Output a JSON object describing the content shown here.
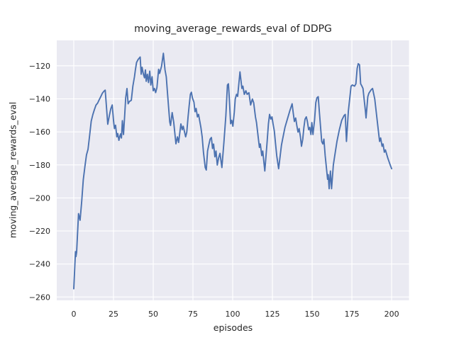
{
  "chart_data": {
    "type": "line",
    "title": "moving_average_rewards_eval of DDPG",
    "xlabel": "episodes",
    "ylabel": "moving_average_rewards_eval",
    "x_ticks": [
      0,
      25,
      50,
      75,
      100,
      125,
      150,
      175,
      200
    ],
    "y_ticks": [
      -120,
      -140,
      -160,
      -180,
      -200,
      -220,
      -240,
      -260
    ],
    "xlim": [
      -10.7,
      210.9
    ],
    "ylim": [
      -262.0,
      -104.6
    ],
    "grid": true,
    "legend": "none",
    "style": "seaborn-darkgrid",
    "colors": {
      "line": "#4c72b0",
      "axes_background": "#eaeaf2",
      "grid": "#ffffff",
      "figure_background": "#ffffff",
      "text": "#262626"
    },
    "series": [
      {
        "name": "moving_average_rewards_eval",
        "points": [
          [
            0,
            -255.0
          ],
          [
            1.1,
            -232.5
          ],
          [
            1.4,
            -235.5
          ],
          [
            1.8,
            -233.0
          ],
          [
            3,
            -209.5
          ],
          [
            4,
            -213.5
          ],
          [
            5,
            -202
          ],
          [
            6,
            -189
          ],
          [
            7,
            -181
          ],
          [
            8,
            -174
          ],
          [
            9,
            -170.5
          ],
          [
            10,
            -162
          ],
          [
            11,
            -153.5
          ],
          [
            12,
            -149.5
          ],
          [
            13,
            -146.5
          ],
          [
            14,
            -143.8
          ],
          [
            15,
            -142.6
          ],
          [
            16,
            -140.6
          ],
          [
            17,
            -138.6
          ],
          [
            18,
            -136.6
          ],
          [
            19,
            -135.4
          ],
          [
            19.8,
            -134.7
          ],
          [
            20.6,
            -145
          ],
          [
            21.4,
            -155.4
          ],
          [
            22.4,
            -150
          ],
          [
            23.3,
            -146
          ],
          [
            24.2,
            -143.7
          ],
          [
            25,
            -153
          ],
          [
            25.6,
            -158
          ],
          [
            26.3,
            -156
          ],
          [
            27.1,
            -163
          ],
          [
            27.7,
            -161
          ],
          [
            28.4,
            -165.1
          ],
          [
            29.1,
            -162.3
          ],
          [
            29.5,
            -161.2
          ],
          [
            30,
            -163.7
          ],
          [
            30.6,
            -153.2
          ],
          [
            31.3,
            -161.6
          ],
          [
            32,
            -150.5
          ],
          [
            32.7,
            -139.4
          ],
          [
            33.5,
            -133.7
          ],
          [
            34.2,
            -143
          ],
          [
            35,
            -141.6
          ],
          [
            36.2,
            -140.9
          ],
          [
            37.2,
            -132.3
          ],
          [
            38.2,
            -126.5
          ],
          [
            38.8,
            -122.3
          ],
          [
            39.5,
            -118
          ],
          [
            40.5,
            -116.2
          ],
          [
            41.8,
            -114.7
          ],
          [
            42.4,
            -125.1
          ],
          [
            43,
            -120.9
          ],
          [
            43.8,
            -125
          ],
          [
            44.5,
            -127.3
          ],
          [
            45.1,
            -122.5
          ],
          [
            45.6,
            -129.4
          ],
          [
            46.3,
            -125.1
          ],
          [
            47,
            -130.1
          ],
          [
            47.8,
            -123.2
          ],
          [
            48.5,
            -131.6
          ],
          [
            49.3,
            -126.6
          ],
          [
            50,
            -135.1
          ],
          [
            50.8,
            -133.7
          ],
          [
            51.5,
            -136.2
          ],
          [
            52.3,
            -133.3
          ],
          [
            53.4,
            -122.1
          ],
          [
            54,
            -124.6
          ],
          [
            55.2,
            -120.3
          ],
          [
            56.4,
            -112.4
          ],
          [
            57.4,
            -122.4
          ],
          [
            58.2,
            -126.7
          ],
          [
            58.9,
            -135.3
          ],
          [
            59.7,
            -145.3
          ],
          [
            60.4,
            -154
          ],
          [
            60.9,
            -156.1
          ],
          [
            61.9,
            -148.3
          ],
          [
            62.9,
            -154.2
          ],
          [
            64.3,
            -167.2
          ],
          [
            65.2,
            -163
          ],
          [
            66,
            -166.4
          ],
          [
            67.4,
            -155.2
          ],
          [
            68.2,
            -158.7
          ],
          [
            68.9,
            -156.6
          ],
          [
            70.4,
            -163
          ],
          [
            71.1,
            -160.2
          ],
          [
            71.9,
            -151
          ],
          [
            72.6,
            -144.4
          ],
          [
            73.4,
            -137.2
          ],
          [
            74,
            -136
          ],
          [
            74.7,
            -139.5
          ],
          [
            75.6,
            -142
          ],
          [
            76.3,
            -147.8
          ],
          [
            77,
            -145.8
          ],
          [
            77.8,
            -150.9
          ],
          [
            78.5,
            -149.4
          ],
          [
            80,
            -157.3
          ],
          [
            80.8,
            -163
          ],
          [
            81.6,
            -172.3
          ],
          [
            82.7,
            -181.6
          ],
          [
            83.4,
            -183.1
          ],
          [
            84.2,
            -171.6
          ],
          [
            85,
            -167.8
          ],
          [
            85.8,
            -164.4
          ],
          [
            86.6,
            -163.4
          ],
          [
            87.3,
            -170.1
          ],
          [
            88,
            -167.4
          ],
          [
            88.8,
            -175.1
          ],
          [
            89.5,
            -171.6
          ],
          [
            90.3,
            -180.1
          ],
          [
            91.1,
            -175.9
          ],
          [
            92,
            -173
          ],
          [
            93.2,
            -181.6
          ],
          [
            94.5,
            -166
          ],
          [
            95.7,
            -150.1
          ],
          [
            96.7,
            -131.6
          ],
          [
            97.3,
            -130.9
          ],
          [
            97.9,
            -140.1
          ],
          [
            98.7,
            -155.1
          ],
          [
            99.4,
            -153
          ],
          [
            100.1,
            -156.6
          ],
          [
            101,
            -148
          ],
          [
            101.6,
            -140.1
          ],
          [
            102.4,
            -137.3
          ],
          [
            103.1,
            -138.5
          ],
          [
            104.6,
            -123.7
          ],
          [
            105.8,
            -133.7
          ],
          [
            106.4,
            -132.3
          ],
          [
            107.3,
            -137.3
          ],
          [
            108.3,
            -135.1
          ],
          [
            109.1,
            -137.3
          ],
          [
            110.2,
            -136.3
          ],
          [
            111.3,
            -143.7
          ],
          [
            112.4,
            -140.1
          ],
          [
            113.2,
            -142.3
          ],
          [
            114.3,
            -150.9
          ],
          [
            115,
            -154.4
          ],
          [
            116.2,
            -164.4
          ],
          [
            116.8,
            -169.4
          ],
          [
            117.4,
            -167.3
          ],
          [
            118.3,
            -174.4
          ],
          [
            118.9,
            -171.6
          ],
          [
            120.2,
            -183.7
          ],
          [
            121.7,
            -165.8
          ],
          [
            122.5,
            -155.1
          ],
          [
            123.2,
            -149.4
          ],
          [
            124,
            -152.3
          ],
          [
            124.7,
            -150.9
          ],
          [
            125.4,
            -155.1
          ],
          [
            126.2,
            -159.4
          ],
          [
            126.9,
            -166.6
          ],
          [
            127.7,
            -174.4
          ],
          [
            128.9,
            -182.3
          ],
          [
            129.9,
            -174.4
          ],
          [
            130.7,
            -168
          ],
          [
            131.4,
            -164.4
          ],
          [
            132.9,
            -157.3
          ],
          [
            134.4,
            -152.3
          ],
          [
            135.9,
            -147.3
          ],
          [
            137.4,
            -143
          ],
          [
            138.1,
            -148.7
          ],
          [
            138.8,
            -153.7
          ],
          [
            139.6,
            -151.6
          ],
          [
            140.3,
            -155.8
          ],
          [
            141.1,
            -160.1
          ],
          [
            141.8,
            -158
          ],
          [
            142.6,
            -163
          ],
          [
            143.3,
            -168.7
          ],
          [
            144.1,
            -164.4
          ],
          [
            144.8,
            -157.3
          ],
          [
            145.5,
            -152.3
          ],
          [
            146.3,
            -150.9
          ],
          [
            147,
            -153.7
          ],
          [
            147.8,
            -158.7
          ],
          [
            148.5,
            -157.3
          ],
          [
            149.2,
            -161.6
          ],
          [
            149.8,
            -154.4
          ],
          [
            150.5,
            -161.6
          ],
          [
            151.5,
            -153
          ],
          [
            152.3,
            -142.3
          ],
          [
            153,
            -139.4
          ],
          [
            153.8,
            -138.7
          ],
          [
            154.5,
            -147.3
          ],
          [
            156,
            -165.8
          ],
          [
            156.7,
            -167.3
          ],
          [
            157.4,
            -164.4
          ],
          [
            158.2,
            -174.4
          ],
          [
            159.7,
            -188.7
          ],
          [
            160.1,
            -185.9
          ],
          [
            160.7,
            -194.4
          ],
          [
            161.5,
            -183.7
          ],
          [
            162.2,
            -194.4
          ],
          [
            163.3,
            -180.1
          ],
          [
            164.2,
            -174.4
          ],
          [
            165.6,
            -165.8
          ],
          [
            167.1,
            -158.7
          ],
          [
            168.6,
            -153
          ],
          [
            170.1,
            -150.1
          ],
          [
            170.8,
            -149.4
          ],
          [
            171.6,
            -165.8
          ],
          [
            172.8,
            -147.3
          ],
          [
            174.5,
            -132.3
          ],
          [
            175.3,
            -131.6
          ],
          [
            176.7,
            -132.3
          ],
          [
            177.5,
            -130.9
          ],
          [
            178.3,
            -121.6
          ],
          [
            179,
            -118.7
          ],
          [
            179.8,
            -119.4
          ],
          [
            180.5,
            -130.9
          ],
          [
            181.3,
            -132.3
          ],
          [
            182,
            -133.7
          ],
          [
            183.5,
            -147.3
          ],
          [
            183.9,
            -151.6
          ],
          [
            185,
            -138.7
          ],
          [
            185.7,
            -136.6
          ],
          [
            187.2,
            -134.4
          ],
          [
            188,
            -133.7
          ],
          [
            189.4,
            -140.1
          ],
          [
            190.9,
            -153
          ],
          [
            192.4,
            -165.8
          ],
          [
            193.1,
            -163.7
          ],
          [
            194,
            -168.7
          ],
          [
            194.6,
            -167.3
          ],
          [
            195.4,
            -172.3
          ],
          [
            196.1,
            -170.9
          ],
          [
            197.6,
            -175.9
          ],
          [
            199.1,
            -180.1
          ],
          [
            200,
            -182.3
          ]
        ]
      }
    ]
  }
}
